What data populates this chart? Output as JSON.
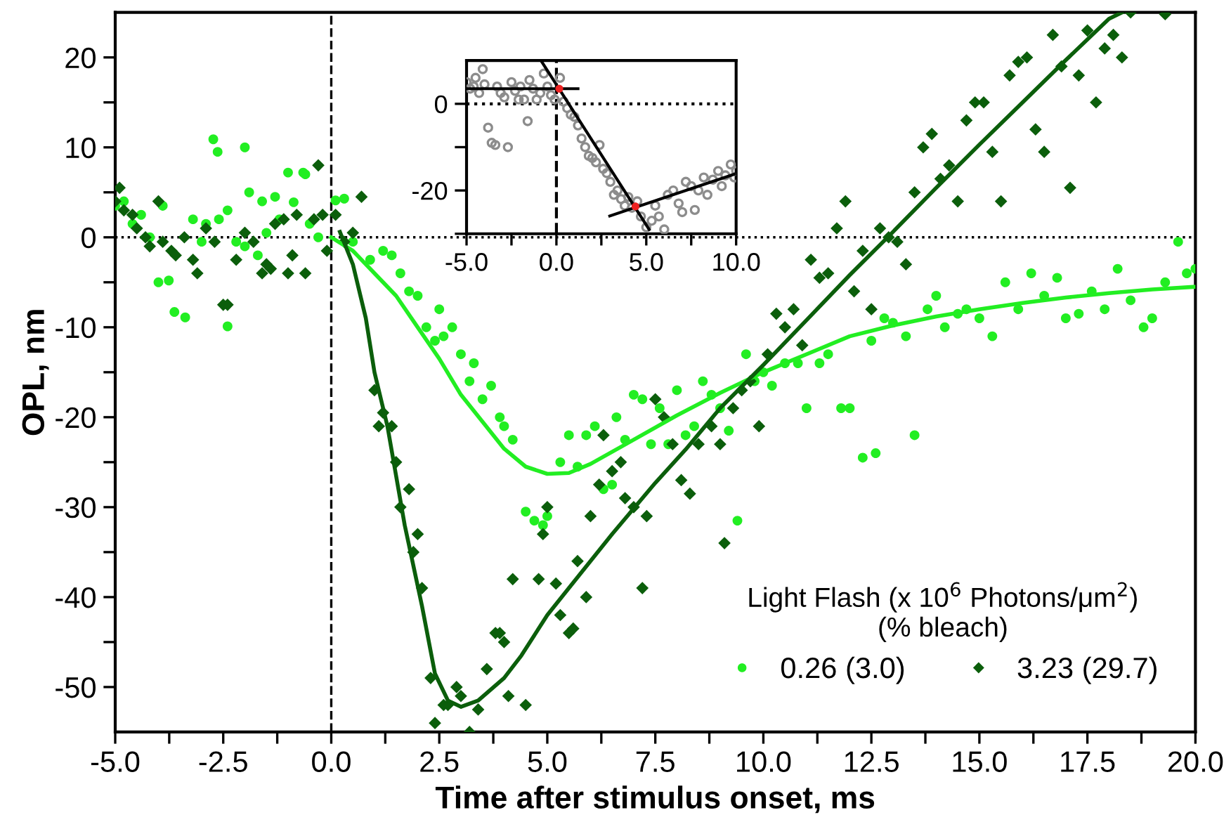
{
  "chart_data": [
    {
      "type": "scatter",
      "xlabel": "Time after stimulus onset, ms",
      "ylabel": "OPL, nm",
      "legend_title": "Light Flash (x 10$^{6}$ Photons/μm$^{2}$)\n(% bleach)",
      "legend": "bottom right",
      "xlim": [
        -5,
        20
      ],
      "ylim": [
        -55,
        25
      ],
      "xticks": [
        {
          "value": -5,
          "label": "-5.0"
        },
        {
          "value": -3.75,
          "label": null
        },
        {
          "value": -2.5,
          "label": "-2.5"
        },
        {
          "value": -1.25,
          "label": null
        },
        {
          "value": 0,
          "label": "0.0"
        },
        {
          "value": 1.25,
          "label": null
        },
        {
          "value": 2.5,
          "label": "2.5"
        },
        {
          "value": 3.75,
          "label": null
        },
        {
          "value": 5,
          "label": "5.0"
        },
        {
          "value": 6.25,
          "label": null
        },
        {
          "value": 7.5,
          "label": "7.5"
        },
        {
          "value": 8.75,
          "label": null
        },
        {
          "value": 10,
          "label": "10.0"
        },
        {
          "value": 11.25,
          "label": null
        },
        {
          "value": 12.5,
          "label": "12.5"
        },
        {
          "value": 13.75,
          "label": null
        },
        {
          "value": 15,
          "label": "15.0"
        },
        {
          "value": 16.25,
          "label": null
        },
        {
          "value": 17.5,
          "label": "17.5"
        },
        {
          "value": 18.75,
          "label": null
        },
        {
          "value": 20,
          "label": "20.0"
        }
      ],
      "yticks": [
        -50,
        {
          "value": -45,
          "label": null
        },
        -40,
        {
          "value": -35,
          "label": null
        },
        -30,
        {
          "value": -25,
          "label": null
        },
        -20,
        {
          "value": -15,
          "label": null
        },
        -10,
        {
          "value": -5,
          "label": null
        },
        0,
        {
          "value": 5,
          "label": null
        },
        10,
        {
          "value": 15,
          "label": null
        },
        20
      ],
      "grid": false,
      "ref_lines": [
        {
          "axis": "x",
          "value": 0,
          "color": "#000000",
          "line_style": "dashed"
        },
        {
          "axis": "y",
          "value": 0,
          "color": "#000000",
          "line_style": "dotted"
        }
      ],
      "series": [
        {
          "name": "0.26 (3.0)",
          "marker": "circle",
          "color": "#22ee22",
          "x": [
            -5.0,
            -4.8,
            -4.6,
            -4.4,
            -4.2,
            -4.0,
            -3.9,
            -3.76,
            -3.63,
            -3.38,
            -3.2,
            -3.0,
            -2.9,
            -2.73,
            -2.63,
            -2.6,
            -2.4,
            -2.4,
            -2.2,
            -2.0,
            -2.0,
            -1.9,
            -1.7,
            -1.6,
            -1.5,
            -1.3,
            -1.2,
            -1.0,
            -0.87,
            -0.65,
            -0.6,
            -0.5,
            -0.3,
            0.1,
            0.3,
            0.5,
            0.9,
            1.2,
            1.4,
            1.6,
            1.8,
            2.0,
            2.2,
            2.4,
            2.5,
            2.6,
            2.8,
            3.0,
            3.2,
            3.3,
            3.5,
            3.7,
            3.9,
            4.0,
            4.2,
            4.5,
            4.7,
            4.9,
            5.0,
            5.3,
            5.5,
            5.7,
            5.9,
            6.1,
            6.3,
            6.5,
            6.6,
            6.8,
            7.0,
            7.2,
            7.4,
            7.6,
            7.8,
            8.0,
            8.2,
            8.4,
            8.6,
            8.8,
            9.0,
            9.2,
            9.4,
            9.6,
            9.8,
            10.0,
            10.2,
            10.5,
            10.8,
            11.0,
            11.3,
            11.5,
            11.8,
            12.0,
            12.3,
            12.5,
            12.6,
            12.8,
            13.0,
            13.3,
            13.5,
            13.8,
            14.0,
            14.2,
            14.5,
            14.7,
            15.0,
            15.3,
            15.6,
            15.9,
            16.2,
            16.5,
            16.8,
            17.0,
            17.3,
            17.6,
            17.9,
            18.2,
            18.5,
            18.8,
            19.0,
            19.3,
            19.6,
            19.8,
            20.0
          ],
          "values": [
            3.5,
            4,
            1.5,
            2.5,
            0,
            -5,
            3.5,
            -4.8,
            -8.3,
            -8.9,
            2,
            -0.5,
            1.5,
            10.9,
            9.5,
            2,
            3,
            -9.9,
            -0.5,
            10,
            -1,
            5,
            -2,
            4,
            0.5,
            4.5,
            2,
            7.2,
            3.9,
            7.2,
            7,
            1.5,
            0,
            4.1,
            4.3,
            -0.5,
            -2.5,
            -1.5,
            -2,
            -4,
            -6,
            -6.5,
            -10,
            -11.5,
            -8,
            -11,
            -10,
            -13,
            -16,
            -14,
            -18,
            -16.5,
            -20,
            -21,
            -22.5,
            -30.5,
            -31.5,
            -32,
            -31,
            -25,
            -22,
            -25.5,
            -22,
            -21,
            -28,
            -27.5,
            -20,
            -22.5,
            -17.5,
            -18,
            -23,
            -19,
            -23,
            -17,
            -22,
            -21,
            -16,
            -17.5,
            -19,
            -21.5,
            -31.5,
            -13,
            -16,
            -15,
            -16.5,
            -14,
            -14,
            -19,
            -14,
            -13,
            -19,
            -19,
            -24.5,
            -11.5,
            -24,
            -9,
            -9.5,
            -11,
            -22,
            -8,
            -6.5,
            -10,
            -8.5,
            -8,
            -9,
            -11,
            -5,
            -8,
            -4,
            -6.5,
            -4.5,
            -9,
            -8.5,
            -6,
            -8,
            -3.5,
            -7,
            -10,
            -9,
            -5,
            -0.5,
            -4,
            -3.5
          ]
        },
        {
          "name": "3.23 (29.7)",
          "marker": "diamond",
          "color": "#0b5e0b",
          "x": [
            -5.0,
            -4.9,
            -4.8,
            -4.6,
            -4.5,
            -4.3,
            -4.2,
            -4.0,
            -3.9,
            -3.7,
            -3.6,
            -3.4,
            -3.2,
            -3.1,
            -2.9,
            -2.7,
            -2.5,
            -2.4,
            -2.2,
            -2.0,
            -1.8,
            -1.6,
            -1.5,
            -1.4,
            -1.3,
            -1.1,
            -1.0,
            -0.9,
            -0.8,
            -0.6,
            -0.4,
            -0.3,
            -0.2,
            -0.1,
            0.1,
            0.3,
            0.5,
            0.7,
            1.0,
            1.1,
            1.2,
            1.4,
            1.5,
            1.6,
            1.8,
            1.9,
            2.0,
            2.1,
            2.3,
            2.4,
            2.6,
            2.7,
            2.9,
            3.0,
            3.2,
            3.4,
            3.6,
            3.8,
            3.9,
            4.0,
            4.1,
            4.2,
            4.5,
            4.8,
            4.9,
            5.0,
            5.2,
            5.3,
            5.5,
            5.6,
            5.7,
            5.9,
            6.0,
            6.2,
            6.3,
            6.5,
            6.7,
            6.8,
            7.0,
            7.2,
            7.3,
            7.5,
            7.7,
            7.9,
            8.1,
            8.3,
            8.5,
            8.8,
            9.0,
            9.1,
            9.3,
            9.5,
            9.7,
            9.9,
            10.1,
            10.3,
            10.5,
            10.7,
            10.9,
            11.1,
            11.3,
            11.5,
            11.7,
            11.9,
            12.1,
            12.3,
            12.5,
            12.7,
            12.9,
            13.1,
            13.3,
            13.5,
            13.7,
            13.9,
            14.1,
            14.3,
            14.5,
            14.7,
            14.9,
            15.1,
            15.3,
            15.5,
            15.7,
            15.9,
            16.1,
            16.3,
            16.5,
            16.7,
            16.9,
            17.1,
            17.3,
            17.5,
            17.7,
            17.9,
            18.1,
            18.3,
            18.5,
            19.3
          ],
          "values": [
            4,
            5.5,
            3,
            2.5,
            1,
            0,
            -1,
            4,
            -0.5,
            -1.5,
            -2,
            0,
            -2.5,
            -4,
            1,
            -0.5,
            -7.5,
            -7.5,
            -2.5,
            0.5,
            -0.5,
            -4,
            -3,
            -3.5,
            1.5,
            2,
            -4,
            -2,
            2.5,
            -4,
            2,
            8,
            2.5,
            -1.5,
            2.5,
            -0.5,
            0.5,
            4.5,
            -17,
            -21,
            -19.5,
            -21,
            -25,
            -30,
            -28,
            -35,
            -33,
            -39,
            -49,
            -54,
            -52,
            -52,
            -50,
            -51,
            -55,
            -52.5,
            -48,
            -44,
            -44,
            -45,
            -51,
            -38,
            -52,
            -38,
            -33,
            -30,
            -38.5,
            -42,
            -44,
            -43.5,
            -36,
            -40,
            -31,
            -27.5,
            -22,
            -26,
            -25,
            -29,
            -30,
            -39,
            -31,
            -18,
            -20,
            -23,
            -27,
            -28.5,
            -23,
            -21,
            -23,
            -34,
            -19,
            -17,
            -16,
            -21,
            -13,
            -8.5,
            -10,
            -8,
            -12,
            -2.5,
            -4.5,
            -4,
            1,
            4,
            -6,
            -1.5,
            -8,
            1,
            0,
            -0.5,
            -3,
            5,
            10,
            11.5,
            6.5,
            8,
            4,
            13,
            15,
            15,
            9.5,
            4,
            18,
            19.5,
            20,
            12,
            9.5,
            22.5,
            19,
            5.5,
            18,
            23,
            15,
            21,
            22.5,
            20,
            25,
            24.8
          ]
        },
        {
          "type": "line",
          "color": "#22ee22",
          "x": [
            0,
            0.5,
            1,
            1.5,
            2,
            2.5,
            3,
            3.5,
            4,
            4.5,
            5,
            5.5,
            6,
            7,
            8,
            9,
            10,
            11,
            12,
            13,
            14,
            15,
            16,
            17,
            18,
            19,
            20
          ],
          "values": [
            0,
            -1.5,
            -4,
            -6.5,
            -10,
            -13.5,
            -17.5,
            -20.5,
            -23.5,
            -25.5,
            -26.3,
            -26.2,
            -25.2,
            -22.5,
            -19.8,
            -17.3,
            -15,
            -13,
            -11,
            -9.8,
            -8.8,
            -8,
            -7.3,
            -6.7,
            -6.2,
            -5.8,
            -5.5
          ]
        },
        {
          "type": "line",
          "color": "#0b5e0b",
          "x": [
            0.2,
            0.5,
            0.8,
            1.0,
            1.3,
            1.7,
            2.1,
            2.4,
            2.7,
            3.0,
            3.4,
            4.0,
            4.4,
            5.0,
            5.5,
            6.5,
            7.5,
            8.2,
            9,
            10,
            11,
            12,
            13,
            14,
            15,
            16,
            17,
            18,
            18.3
          ],
          "values": [
            0.6,
            -3,
            -9,
            -15,
            -21,
            -32,
            -41,
            -48.5,
            -51.5,
            -52.2,
            -51.5,
            -49,
            -46.5,
            -42,
            -39,
            -33,
            -27.3,
            -23.6,
            -19,
            -14.2,
            -9.2,
            -4.2,
            0.6,
            5.5,
            10.3,
            15,
            19.7,
            24.3,
            25
          ]
        }
      ]
    },
    {
      "type": "scatter",
      "xlim": [
        -5,
        10
      ],
      "ylim": [
        -30,
        10
      ],
      "xticks": [
        {
          "value": -5,
          "label": "-5.0"
        },
        {
          "value": -2.5,
          "label": null
        },
        {
          "value": 0,
          "label": "0.0"
        },
        {
          "value": 2.5,
          "label": null
        },
        {
          "value": 5,
          "label": "5.0"
        },
        {
          "value": 7.5,
          "label": null
        },
        {
          "value": 10,
          "label": "10.0"
        }
      ],
      "yticks": [
        {
          "value": -30,
          "label": null
        },
        -20,
        {
          "value": -10,
          "label": null
        },
        0
      ],
      "grid": false,
      "ref_lines": [
        {
          "axis": "x",
          "value": 0,
          "color": "#000000",
          "line_style": "dashed"
        },
        {
          "axis": "y",
          "value": 0,
          "color": "#000000",
          "line_style": "dotted"
        }
      ],
      "series": [
        {
          "marker": "circle",
          "color": "#8c8c8c",
          "x": [
            -5,
            -4.8,
            -4.6,
            -4.5,
            -4.3,
            -4.1,
            -4.0,
            -3.8,
            -3.6,
            -3.4,
            -3.3,
            -3.1,
            -2.9,
            -2.7,
            -2.5,
            -2.3,
            -2.1,
            -2.0,
            -1.8,
            -1.6,
            -1.5,
            -1.3,
            -1.1,
            -0.9,
            -0.7,
            -0.5,
            -0.3,
            -0.1,
            0.2,
            0.4,
            0.6,
            0.8,
            1.0,
            1.2,
            1.4,
            1.6,
            1.8,
            2.0,
            2.2,
            2.4,
            2.6,
            2.8,
            3.0,
            3.2,
            3.4,
            3.6,
            3.8,
            4.0,
            4.2,
            4.5,
            4.7,
            5.0,
            5.3,
            5.5,
            5.7,
            6.0,
            6.2,
            6.5,
            6.8,
            7.0,
            7.2,
            7.5,
            7.7,
            7.9,
            8.2,
            8.4,
            8.7,
            9.0,
            9.2,
            9.4,
            9.7,
            9.9,
            10.0
          ],
          "values": [
            5,
            3.5,
            4,
            6,
            2.5,
            8,
            4.5,
            -5.5,
            -9,
            -9.5,
            4,
            2.5,
            1.5,
            -10,
            5,
            3,
            1,
            4,
            1,
            -4,
            5.5,
            3.5,
            1,
            2.5,
            7,
            4,
            2,
            1,
            6,
            0.5,
            -1,
            -2.5,
            -3,
            -5,
            -8,
            -10,
            -12,
            -12.5,
            -13.5,
            -9.5,
            -15,
            -16,
            -18,
            -21,
            -20,
            -22,
            -23.5,
            -21.5,
            -24,
            -22.5,
            -26,
            -28.5,
            -27,
            -23.5,
            -26,
            -29,
            -21,
            -20,
            -23,
            -25,
            -18,
            -19,
            -24.5,
            -20,
            -17,
            -21,
            -17.5,
            -15.5,
            -19,
            -16.5,
            -14,
            -17,
            -15.5
          ]
        },
        {
          "type": "line",
          "color": "#000000",
          "x": [
            -5,
            1.2
          ],
          "values": [
            3.5,
            3.5
          ]
        },
        {
          "type": "line",
          "color": "#000000",
          "x": [
            -0.86,
            5.16
          ],
          "values": [
            10,
            -29
          ]
        },
        {
          "type": "line",
          "color": "#000000",
          "x": [
            2.97,
            10
          ],
          "values": [
            -25.9,
            -16.1
          ]
        },
        {
          "marker": "circle",
          "color": "#ee2222",
          "x": [
            0.16,
            4.4
          ],
          "values": [
            3.5,
            -23.7
          ]
        }
      ]
    }
  ]
}
